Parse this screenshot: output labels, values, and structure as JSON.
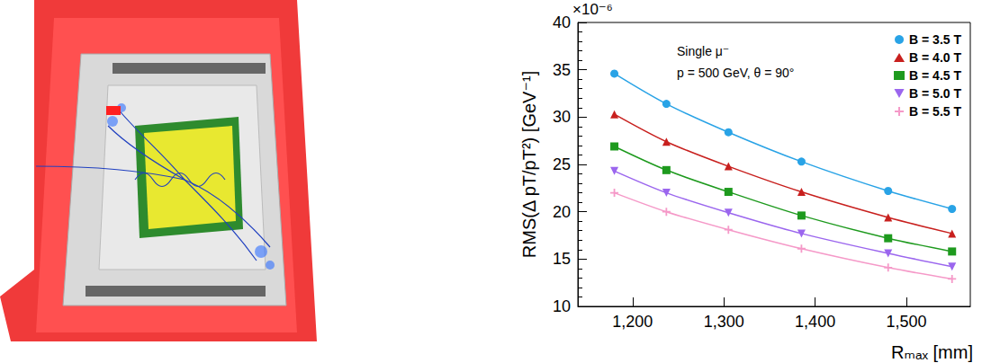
{
  "chart_data": {
    "type": "line",
    "x_label": "Rₘₐₓ [mm]",
    "y_label": "RMS(Δ pT/pT²) [GeV⁻¹]",
    "annotations": [
      "×10⁻⁶",
      "Single μ⁻",
      "p = 500 GeV, θ = 90°"
    ],
    "x": [
      1180,
      1237,
      1305,
      1385,
      1480,
      1550
    ],
    "series": [
      {
        "name": "B = 3.5 T",
        "color": "#29a3e6",
        "marker": "circle",
        "values": [
          34.6,
          31.4,
          28.4,
          25.3,
          22.2,
          20.3
        ]
      },
      {
        "name": "B = 4.0 T",
        "color": "#c8201e",
        "marker": "triangle",
        "values": [
          30.3,
          27.4,
          24.8,
          22.1,
          19.4,
          17.7
        ]
      },
      {
        "name": "B = 4.5 T",
        "color": "#1e9a1e",
        "marker": "square",
        "values": [
          26.9,
          24.4,
          22.1,
          19.6,
          17.2,
          15.8
        ]
      },
      {
        "name": "B = 5.0 T",
        "color": "#9b66ee",
        "marker": "triangle-down",
        "values": [
          24.3,
          22.0,
          19.9,
          17.7,
          15.6,
          14.2
        ]
      },
      {
        "name": "B = 5.5 T",
        "color": "#f599c8",
        "marker": "cross",
        "values": [
          22.0,
          20.0,
          18.1,
          16.1,
          14.1,
          12.9
        ]
      }
    ],
    "xlim": [
      1140,
      1570
    ],
    "xticks": [
      1200,
      1300,
      1400,
      1500
    ],
    "ylim": [
      10,
      40
    ],
    "yticks": [
      10,
      15,
      20,
      25,
      30,
      35,
      40
    ],
    "legend": "top-right",
    "grid": false
  }
}
